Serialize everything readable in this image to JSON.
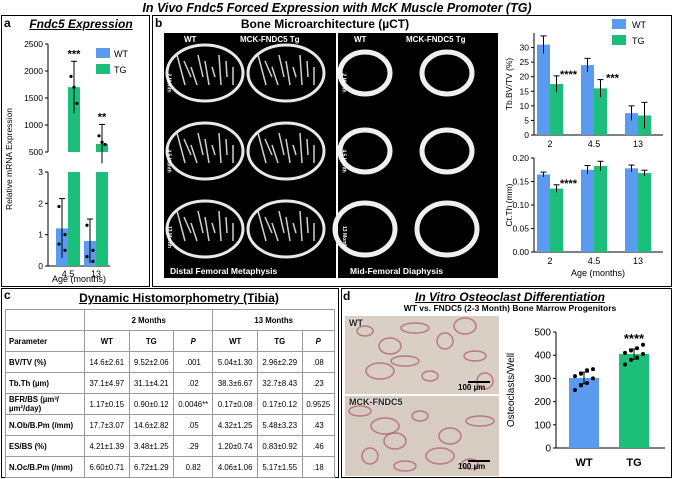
{
  "figure_title": "In Vivo Fndc5 Forced Expression with McK Muscle Promoter (TG)",
  "panels": {
    "a": {
      "label": "a",
      "title": "Fndc5 Expression",
      "ylabel": "Relative mRNA Expression",
      "xlabel": "Age (months)"
    },
    "b": {
      "label": "b",
      "title": "Bone Microarchitecture (µCT)",
      "col_labels": [
        "WT",
        "MCK-FNDC5 Tg",
        "WT",
        "MCK-FNDC5 Tg"
      ],
      "row_labels": [
        "2 Month",
        "4.5 Month",
        "13 Month"
      ],
      "left_caption": "Distal Femoral Metaphysis",
      "right_caption": "Mid-Femoral Diaphysis",
      "xlabel": "Age (months)"
    },
    "c": {
      "label": "c",
      "title": "Dynamic Histomorphometry (Tibia)"
    },
    "d": {
      "label": "d",
      "title": "In Vitro Osteoclast Differentiation",
      "subtitle": "WT vs. FNDC5 (2-3 Month) Bone Marrow Progenitors",
      "img_labels": [
        "WT",
        "MCK-FNDC5"
      ],
      "scale_bar": "100 µm"
    }
  },
  "table": {
    "group_headers": [
      "2 Months",
      "13 Months"
    ],
    "columns": [
      "Parameter",
      "WT",
      "TG",
      "P",
      "WT",
      "TG",
      "P"
    ],
    "rows": [
      [
        "BV/TV (%)",
        "14.6±2.61",
        "9.52±2.06",
        ".001",
        "5.04±1.30",
        "2.96±2.29",
        ".08"
      ],
      [
        "Tb.Th (µm)",
        "37.1±4.97",
        "31.1±4.21",
        ".02",
        "38.3±6.67",
        "32.7±8.43",
        ".23"
      ],
      [
        "BFR/BS (µm³/µm²/day)",
        "1.17±0.15",
        "0.90±0.12",
        "0.0046**",
        "0.17±0.08",
        "0.17±0.12",
        "0.9525"
      ],
      [
        "N.Ob/B.Pm (/mm)",
        "17.7±3.07",
        "14.6±2.82",
        ".05",
        "4.32±1.25",
        "5.48±3.23",
        ".43"
      ],
      [
        "ES/BS (%)",
        "4.21±1.39",
        "3.48±1.25",
        ".29",
        "1.20±0.74",
        "0.83±0.92",
        ".46"
      ],
      [
        "N.Oc/B.Pm (/mm)",
        "6.60±0.71",
        "6.72±1.29",
        "0.82",
        "4.06±1.06",
        "5.17±1.55",
        ".18"
      ]
    ]
  },
  "colors": {
    "wt": "#5b9bef",
    "tg": "#1bbf79"
  },
  "chart_data": [
    {
      "id": "fndc5-expression",
      "type": "bar",
      "categories": [
        "4.5",
        "13"
      ],
      "series": [
        {
          "name": "WT",
          "values": [
            1.2,
            0.8
          ],
          "err": [
            0.95,
            0.7
          ]
        },
        {
          "name": "TG",
          "values": [
            1700,
            650
          ],
          "err": [
            480,
            360
          ]
        }
      ],
      "annotations": [
        {
          "category": "4.5",
          "text": "***"
        },
        {
          "category": "13",
          "text": "**"
        }
      ],
      "ylim_lower": [
        0,
        3
      ],
      "ylim_upper": [
        500,
        2500
      ],
      "yticks_lower": [
        "0",
        "1",
        "2",
        "3"
      ],
      "yticks_upper": [
        "500",
        "1000",
        "1500",
        "2000",
        "2500"
      ],
      "xlabel": "Age (months)",
      "ylabel": "Relative mRNA Expression",
      "legend": [
        "WT",
        "TG"
      ]
    },
    {
      "id": "tb-bvtv",
      "type": "bar",
      "categories": [
        "2",
        "4.5",
        "13"
      ],
      "series": [
        {
          "name": "WT",
          "values": [
            31,
            24,
            7.5
          ],
          "err": [
            3,
            2.3,
            2.5
          ]
        },
        {
          "name": "TG",
          "values": [
            17.5,
            16,
            6.7
          ],
          "err": [
            2.8,
            3,
            4.5
          ]
        }
      ],
      "annotations": [
        {
          "category": "2",
          "text": "****"
        },
        {
          "category": "4.5",
          "text": "***"
        }
      ],
      "ylim": [
        0,
        35
      ],
      "yticks": [
        "0",
        "5",
        "10",
        "15",
        "20",
        "25",
        "30"
      ],
      "ylabel": "Tb.BV/TV (%)",
      "legend": [
        "WT",
        "TG"
      ]
    },
    {
      "id": "ct-th",
      "type": "bar",
      "categories": [
        "2",
        "4.5",
        "13"
      ],
      "series": [
        {
          "name": "WT",
          "values": [
            0.165,
            0.175,
            0.178
          ],
          "err": [
            0.005,
            0.009,
            0.007
          ]
        },
        {
          "name": "TG",
          "values": [
            0.135,
            0.183,
            0.168
          ],
          "err": [
            0.008,
            0.01,
            0.006
          ]
        }
      ],
      "annotations": [
        {
          "category": "2",
          "text": "****"
        }
      ],
      "ylim": [
        0,
        0.2
      ],
      "yticks": [
        "0.00",
        "0.05",
        "0.10",
        "0.15",
        "0.20"
      ],
      "xlabel": "Age (months)",
      "ylabel": "Ct.Th (mm)"
    },
    {
      "id": "osteoclasts",
      "type": "bar",
      "categories": [
        "WT",
        "TG"
      ],
      "values": [
        302,
        405
      ],
      "err": [
        25,
        22
      ],
      "points": [
        [
          250,
          270,
          280,
          300,
          310,
          320,
          335,
          340
        ],
        [
          360,
          380,
          390,
          405,
          410,
          420,
          430,
          445
        ]
      ],
      "annotations": [
        {
          "category": "TG",
          "text": "****"
        }
      ],
      "ylim": [
        0,
        500
      ],
      "yticks": [
        "0",
        "100",
        "200",
        "300",
        "400",
        "500"
      ],
      "ylabel": "Osteoclasts/Well"
    }
  ]
}
